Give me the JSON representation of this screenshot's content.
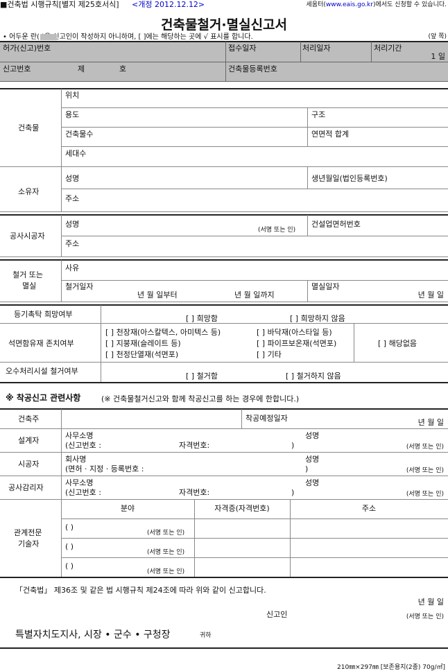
{
  "header": {
    "form_ref": "■건축법 시행규칙[별지 제25호서식]",
    "revision": "<개정 2012.12.12>",
    "online_prefix": "세움터(",
    "online_link": "www.eais.go.kr",
    "online_suffix": ")에서도 신청할 수 있습니다."
  },
  "title": "건축물철거·멸실신고서",
  "note": "• 어두운 란(      )은 신고인이 작성하지 아니하며, [  ]에는 해당하는 곳에 √ 표시를 합니다.",
  "page_side": "(앞 쪽)",
  "office": {
    "permit_no": "허가(신고)번호",
    "received_date": "접수일자",
    "processed_date": "처리일자",
    "period_label": "처리기간",
    "period_value": "1 일",
    "report_no": "신고번호",
    "je": "제",
    "ho": "호",
    "building_reg_no": "건축물등록번호"
  },
  "building": {
    "label": "건축물",
    "location": "위치",
    "use": "용도",
    "structure": "구조",
    "count": "건축물수",
    "total_area": "연면적 합계",
    "households": "세대수"
  },
  "owner": {
    "label": "소유자",
    "name": "성명",
    "birth": "생년월일(법인등록번호)",
    "address": "주소"
  },
  "contractor": {
    "label": "공사시공자",
    "name": "성명",
    "sign": "(서명 또는 인)",
    "license": "건설업면허번호",
    "address": "주소"
  },
  "demolition": {
    "label1": "철거 또는",
    "label2": "멸실",
    "reason": "사유",
    "date_label": "철거일자",
    "date_from": "년     월     일부터",
    "date_to": "년     월     일까지",
    "lost_date": "멸실일자",
    "lost_ymd": "년     월     일"
  },
  "registry": {
    "label": "등기촉탁 희망여부",
    "opt1": "[   ] 희망함",
    "opt2": "[   ] 희망하지 않음"
  },
  "asbestos": {
    "label": "석면함유재 존치여부",
    "items": [
      "[   ] 천장재(아스칼텍스, 아미텍스 등)",
      "[   ] 바닥재(아스타일 등)",
      "[   ] 지붕재(슬레이트 등)",
      "[   ] 파이프보온재(석면포)",
      "[   ] 천정단열재(석면포)",
      "[   ] 기타"
    ],
    "none": "[   ] 해당없음"
  },
  "sewage": {
    "label": "오수처리시설 철거여부",
    "opt1": "[   ] 철거함",
    "opt2": "[   ] 철거하지 않음"
  },
  "start": {
    "heading": "※ 착공신고 관련사항",
    "heading_note": "(※ 건축물철거신고와 함께 착공신고를 하는 경우에 한합니다.)",
    "owner": "건축주",
    "planned_date": "착공예정일자",
    "ymd": "년      월      일",
    "designer": {
      "label": "설계자",
      "line1": "사무소명",
      "line2": "(신고번호 :",
      "cert": "자격번호:",
      "close": ")",
      "name": "성명",
      "sign": "(서명 또는 인)"
    },
    "builder": {
      "label": "시공자",
      "line1": "회사명",
      "line2": "(면허 · 지정 · 등록번호 :",
      "close": ")",
      "name": "성명",
      "sign": "(서명 또는 인)"
    },
    "supervisor": {
      "label": "공사감리자",
      "line1": "사무소명",
      "line2": "(신고번호 :",
      "cert": "자격번호:",
      "close": ")",
      "name": "성명",
      "sign": "(서명 또는 인)"
    },
    "experts": {
      "label1": "관계전문",
      "label2": "기술자",
      "col_field": "분야",
      "col_cert": "자격증(자격번호)",
      "col_address": "주소",
      "paren": "(          )",
      "sign": "(서명 또는 인)"
    }
  },
  "declaration": {
    "text": "「건축법」 제36조 및 같은 법 시행규칙 제24조에 따라 위와 같이 신고합니다.",
    "ymd": "년             월             일",
    "applicant": "신고인",
    "sign": "(서명 또는 인)",
    "addressee": "특별자치도지사, 시장 • 군수 • 구청장",
    "honorific": "귀하"
  },
  "footer": "210㎜×297㎜ [보존용지(2종) 70g/㎡]"
}
